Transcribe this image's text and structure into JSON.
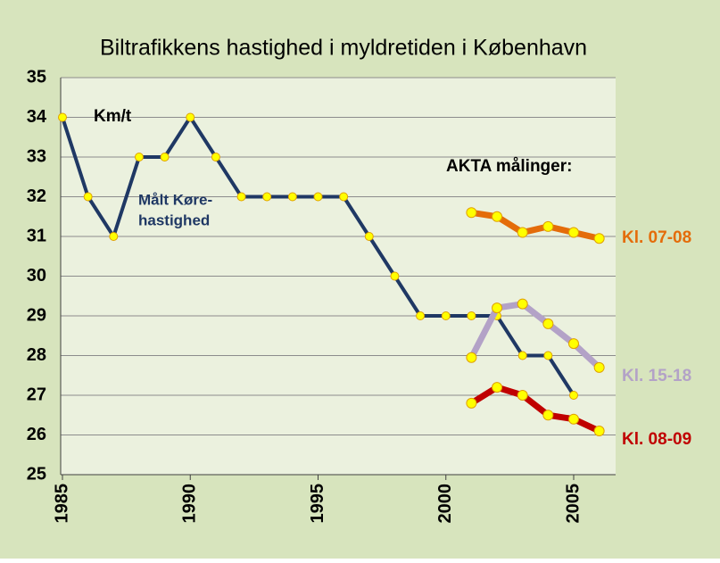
{
  "chart_data": {
    "type": "line",
    "title": "Biltrafikkens hastighed i myldretiden i København",
    "annotations": [
      "Km/t",
      "Målt Køre-",
      "hastighed",
      "AKTA målinger:"
    ],
    "xlim": [
      1985,
      2006.5
    ],
    "xticks": [
      1985,
      1990,
      1995,
      2000,
      2005
    ],
    "ylim": [
      25,
      35
    ],
    "yticks": [
      25,
      26,
      27,
      28,
      29,
      30,
      31,
      32,
      33,
      34,
      35
    ],
    "grid": true,
    "marker_color": "#ffff00",
    "series": [
      {
        "color": "#1f3864",
        "x": [
          1985,
          1986,
          1987,
          1988,
          1989,
          1990,
          1991,
          1992,
          1993,
          1994,
          1995,
          1996,
          1997,
          1998,
          1999,
          2000,
          2001,
          2002,
          2003,
          2004,
          2005
        ],
        "values": [
          34,
          32,
          31,
          33,
          33,
          34,
          33,
          32,
          32,
          32,
          32,
          32,
          31,
          30,
          29,
          29,
          29,
          29,
          28,
          28,
          27
        ]
      },
      {
        "name": "Kl. 07-08",
        "color": "#e46c0a",
        "x": [
          2001,
          2002,
          2003,
          2004,
          2005,
          2006
        ],
        "values": [
          31.6,
          31.5,
          31.1,
          31.25,
          31.1,
          30.95
        ]
      },
      {
        "name": "Kl. 15-18",
        "color": "#b3a2c7",
        "x": [
          2001,
          2002,
          2003,
          2004,
          2005,
          2006
        ],
        "values": [
          27.95,
          29.2,
          29.3,
          28.8,
          28.3,
          27.7
        ]
      },
      {
        "name": "Kl. 08-09",
        "color": "#c00000",
        "x": [
          2001,
          2002,
          2003,
          2004,
          2005,
          2006
        ],
        "values": [
          26.8,
          27.2,
          27.0,
          26.5,
          26.4,
          26.1
        ]
      }
    ]
  }
}
